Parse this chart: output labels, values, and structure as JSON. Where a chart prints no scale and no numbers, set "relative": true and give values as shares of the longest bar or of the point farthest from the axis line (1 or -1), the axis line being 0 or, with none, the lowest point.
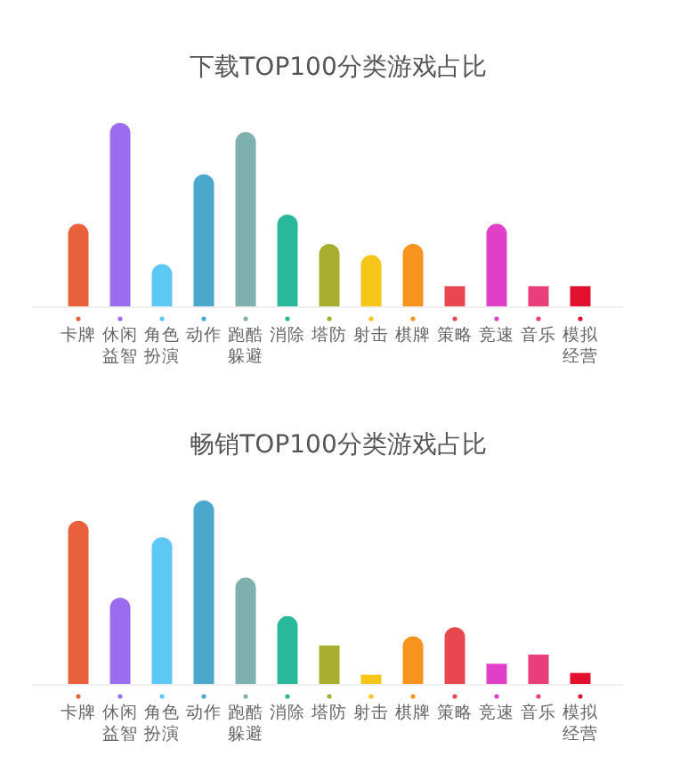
{
  "chart_data": [
    {
      "type": "bar",
      "title": "下载TOP100分类游戏占比",
      "relative": true,
      "categories": [
        "卡牌",
        "休闲益智",
        "角色扮演",
        "动作",
        "跑酷躲避",
        "消除",
        "塔防",
        "射击",
        "棋牌",
        "策略",
        "竞速",
        "音乐",
        "模拟经营"
      ],
      "values": [
        0.45,
        1,
        0.23,
        0.72,
        0.95,
        0.5,
        0.34,
        0.28,
        0.34,
        0.11,
        0.45,
        0.11,
        0.11
      ],
      "colors": [
        "#e8603c",
        "#9b6cf0",
        "#5ec8f5",
        "#4aa8cc",
        "#7fb0b0",
        "#2ab89a",
        "#a8ae30",
        "#f5c518",
        "#f7941d",
        "#e8474f",
        "#e040c8",
        "#e83e7a",
        "#e0102e"
      ]
    },
    {
      "type": "bar",
      "title": "畅销TOP100分类游戏占比",
      "relative": true,
      "categories": [
        "卡牌",
        "休闲益智",
        "角色扮演",
        "动作",
        "跑酷躲避",
        "消除",
        "塔防",
        "射击",
        "棋牌",
        "策略",
        "竞速",
        "音乐",
        "模拟经营"
      ],
      "values": [
        0.89,
        0.47,
        0.8,
        1,
        0.58,
        0.37,
        0.21,
        0.05,
        0.26,
        0.31,
        0.11,
        0.16,
        0.06
      ],
      "colors": [
        "#e8603c",
        "#9b6cf0",
        "#5ec8f5",
        "#4aa8cc",
        "#7fb0b0",
        "#2ab89a",
        "#a8ae30",
        "#f5c518",
        "#f7941d",
        "#e8474f",
        "#e040c8",
        "#e83e7a",
        "#e0102e"
      ]
    }
  ]
}
